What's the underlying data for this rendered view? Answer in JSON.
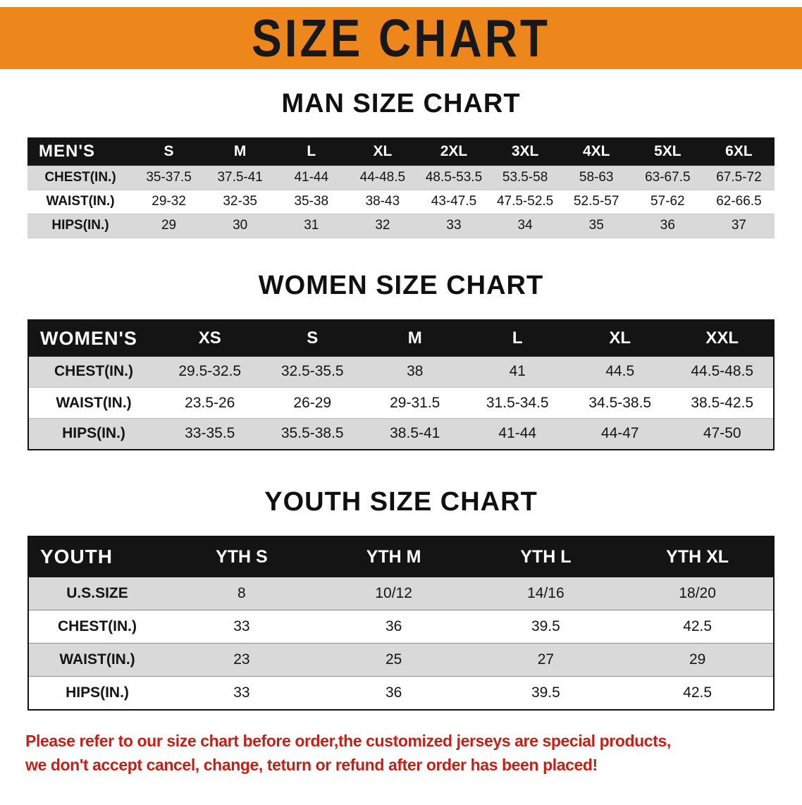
{
  "banner": {
    "title": "SIZE CHART"
  },
  "colors": {
    "banner_orange": "#ED871B",
    "row_stripe_gray": "#D9D9D9",
    "table_header_black": "#141414",
    "disclaimer_red": "#C42017"
  },
  "sections": [
    {
      "id": "men",
      "heading": "MAN SIZE CHART",
      "header": [
        "MEN'S",
        "S",
        "M",
        "L",
        "XL",
        "2XL",
        "3XL",
        "4XL",
        "5XL",
        "6XL"
      ],
      "rows": [
        {
          "label": "CHEST(IN.)",
          "values": [
            "35-37.5",
            "37.5-41",
            "41-44",
            "44-48.5",
            "48.5-53.5",
            "53.5-58",
            "58-63",
            "63-67.5",
            "67.5-72"
          ]
        },
        {
          "label": "WAIST(IN.)",
          "values": [
            "29-32",
            "32-35",
            "35-38",
            "38-43",
            "43-47.5",
            "47.5-52.5",
            "52.5-57",
            "57-62",
            "62-66.5"
          ]
        },
        {
          "label": "HIPS(IN.)",
          "values": [
            "29",
            "30",
            "31",
            "32",
            "33",
            "34",
            "35",
            "36",
            "37"
          ]
        }
      ]
    },
    {
      "id": "women",
      "heading": "WOMEN SIZE CHART",
      "header": [
        "WOMEN'S",
        "XS",
        "S",
        "M",
        "L",
        "XL",
        "XXL"
      ],
      "rows": [
        {
          "label": "CHEST(IN.)",
          "values": [
            "29.5-32.5",
            "32.5-35.5",
            "38",
            "41",
            "44.5",
            "44.5-48.5"
          ]
        },
        {
          "label": "WAIST(IN.)",
          "values": [
            "23.5-26",
            "26-29",
            "29-31.5",
            "31.5-34.5",
            "34.5-38.5",
            "38.5-42.5"
          ]
        },
        {
          "label": "HIPS(IN.)",
          "values": [
            "33-35.5",
            "35.5-38.5",
            "38.5-41",
            "41-44",
            "44-47",
            "47-50"
          ]
        }
      ]
    },
    {
      "id": "youth",
      "heading": "YOUTH SIZE CHART",
      "header": [
        "YOUTH",
        "YTH S",
        "YTH M",
        "YTH L",
        "YTH XL"
      ],
      "rows": [
        {
          "label": "U.S.SIZE",
          "values": [
            "8",
            "10/12",
            "14/16",
            "18/20"
          ]
        },
        {
          "label": "CHEST(IN.)",
          "values": [
            "33",
            "36",
            "39.5",
            "42.5"
          ]
        },
        {
          "label": "WAIST(IN.)",
          "values": [
            "23",
            "25",
            "27",
            "29"
          ]
        },
        {
          "label": "HIPS(IN.)",
          "values": [
            "33",
            "36",
            "39.5",
            "42.5"
          ]
        }
      ]
    }
  ],
  "disclaimer": {
    "line1": "Please refer to our size chart before order,the customized jerseys are special products,",
    "line2": "we don't accept cancel, change, teturn or refund after order has been placed!"
  }
}
